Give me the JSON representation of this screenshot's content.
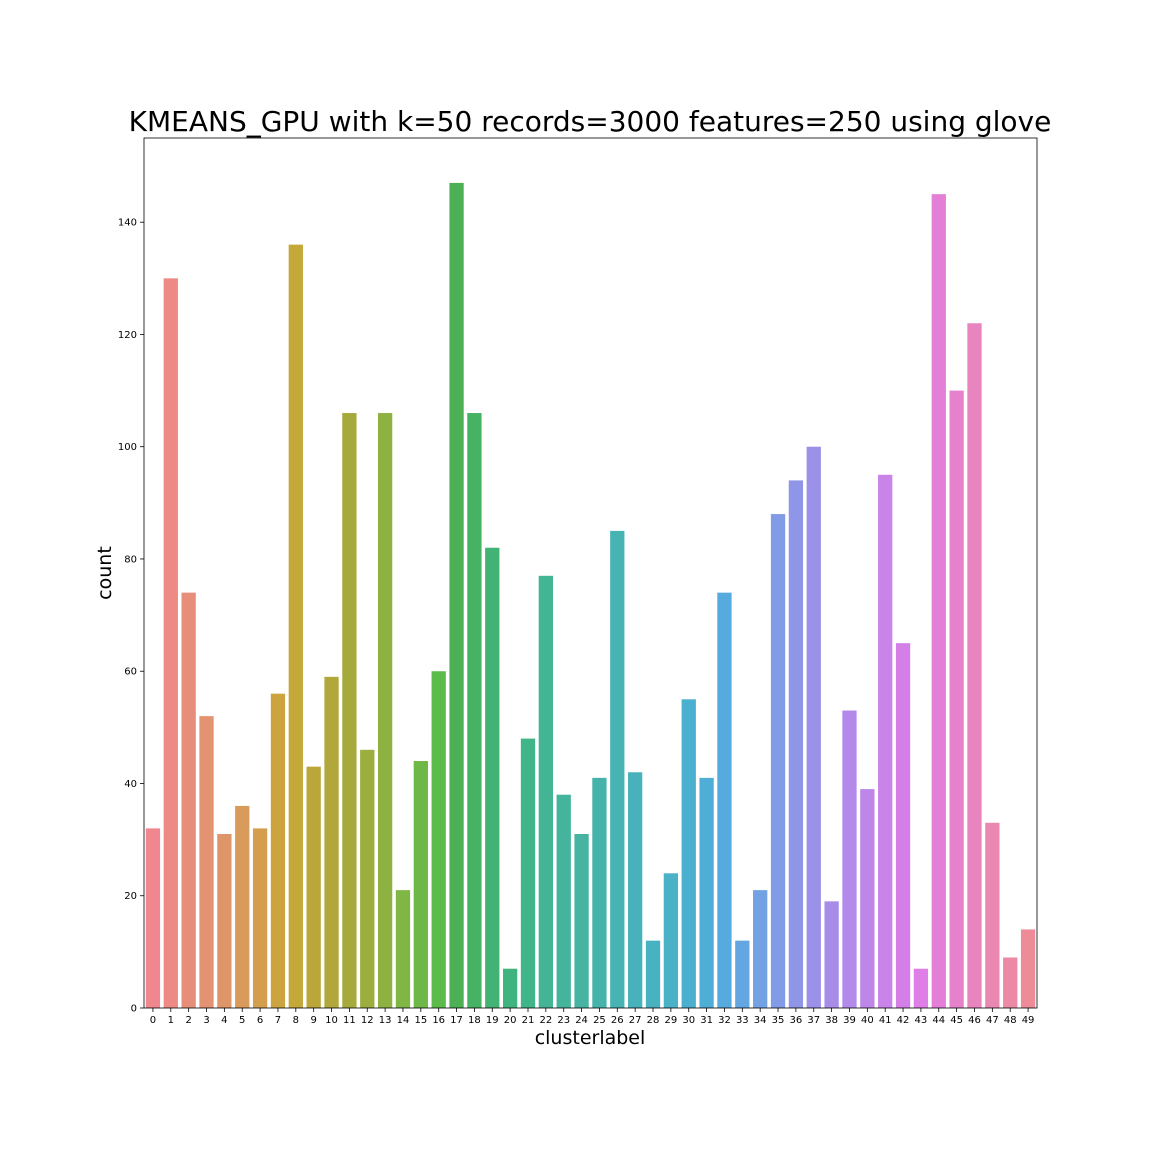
{
  "chart_data": {
    "type": "bar",
    "title": "KMEANS_GPU with k=50 records=3000 features=250 using glove",
    "xlabel": "clusterlabel",
    "ylabel": "count",
    "ylim": [
      0,
      155
    ],
    "yticks": [
      0,
      20,
      40,
      60,
      80,
      100,
      120,
      140
    ],
    "categories": [
      "0",
      "1",
      "2",
      "3",
      "4",
      "5",
      "6",
      "7",
      "8",
      "9",
      "10",
      "11",
      "12",
      "13",
      "14",
      "15",
      "16",
      "17",
      "18",
      "19",
      "20",
      "21",
      "22",
      "23",
      "24",
      "25",
      "26",
      "27",
      "28",
      "29",
      "30",
      "31",
      "32",
      "33",
      "34",
      "35",
      "36",
      "37",
      "38",
      "39",
      "40",
      "41",
      "42",
      "43",
      "44",
      "45",
      "46",
      "47",
      "48",
      "49"
    ],
    "values": [
      32,
      130,
      74,
      52,
      31,
      36,
      32,
      56,
      136,
      43,
      59,
      106,
      46,
      106,
      21,
      44,
      60,
      147,
      106,
      82,
      7,
      48,
      77,
      38,
      31,
      41,
      85,
      42,
      12,
      24,
      55,
      41,
      74,
      12,
      21,
      88,
      94,
      100,
      19,
      53,
      39,
      95,
      65,
      7,
      145,
      110,
      122,
      33,
      9,
      14
    ],
    "colors": [
      "#f0868e",
      "#ec8a83",
      "#e78e7b",
      "#e39272",
      "#de9668",
      "#d99b5c",
      "#d39f4e",
      "#cca43f",
      "#c4a83a",
      "#bba63a",
      "#b1a73a",
      "#a6aa3d",
      "#9bae3e",
      "#8eb241",
      "#7fb644",
      "#6eb847",
      "#5bbc4c",
      "#4db055",
      "#45b264",
      "#42b374",
      "#40b47f",
      "#41b58a",
      "#43b594",
      "#44b49c",
      "#46b3a3",
      "#46b3ab",
      "#47b3b3",
      "#48b2ba",
      "#49b2c0",
      "#4ab1c7",
      "#4bb0cf",
      "#4eaed6",
      "#56abde",
      "#63a6e2",
      "#72a1e4",
      "#829be6",
      "#9096e7",
      "#9c91e8",
      "#a88de8",
      "#b389e9",
      "#be86e9",
      "#c983e9",
      "#d47fe8",
      "#de7ee6",
      "#e47fd8",
      "#e682cb",
      "#e885bf",
      "#ea88b2",
      "#ec8aa5",
      "#ed8c98"
    ]
  }
}
